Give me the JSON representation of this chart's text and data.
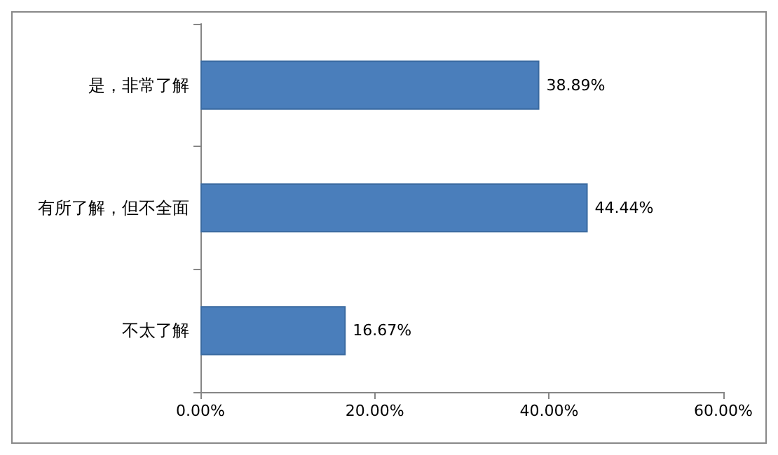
{
  "chart_data": {
    "type": "bar",
    "orientation": "horizontal",
    "categories": [
      "是，非常了解",
      "有所了解，但不全面",
      "不太了解"
    ],
    "values": [
      38.89,
      44.44,
      16.67
    ],
    "color": "#4a7ebb",
    "value_labels": [
      "38.89%",
      "44.44%",
      "16.67%"
    ],
    "xlim": [
      0,
      60
    ],
    "xticks": [
      {
        "value": 0,
        "label": "0.00%"
      },
      {
        "value": 20,
        "label": "20.00%"
      },
      {
        "value": 40,
        "label": "40.00%"
      },
      {
        "value": 60,
        "label": "60.00%"
      }
    ],
    "grid": false
  }
}
